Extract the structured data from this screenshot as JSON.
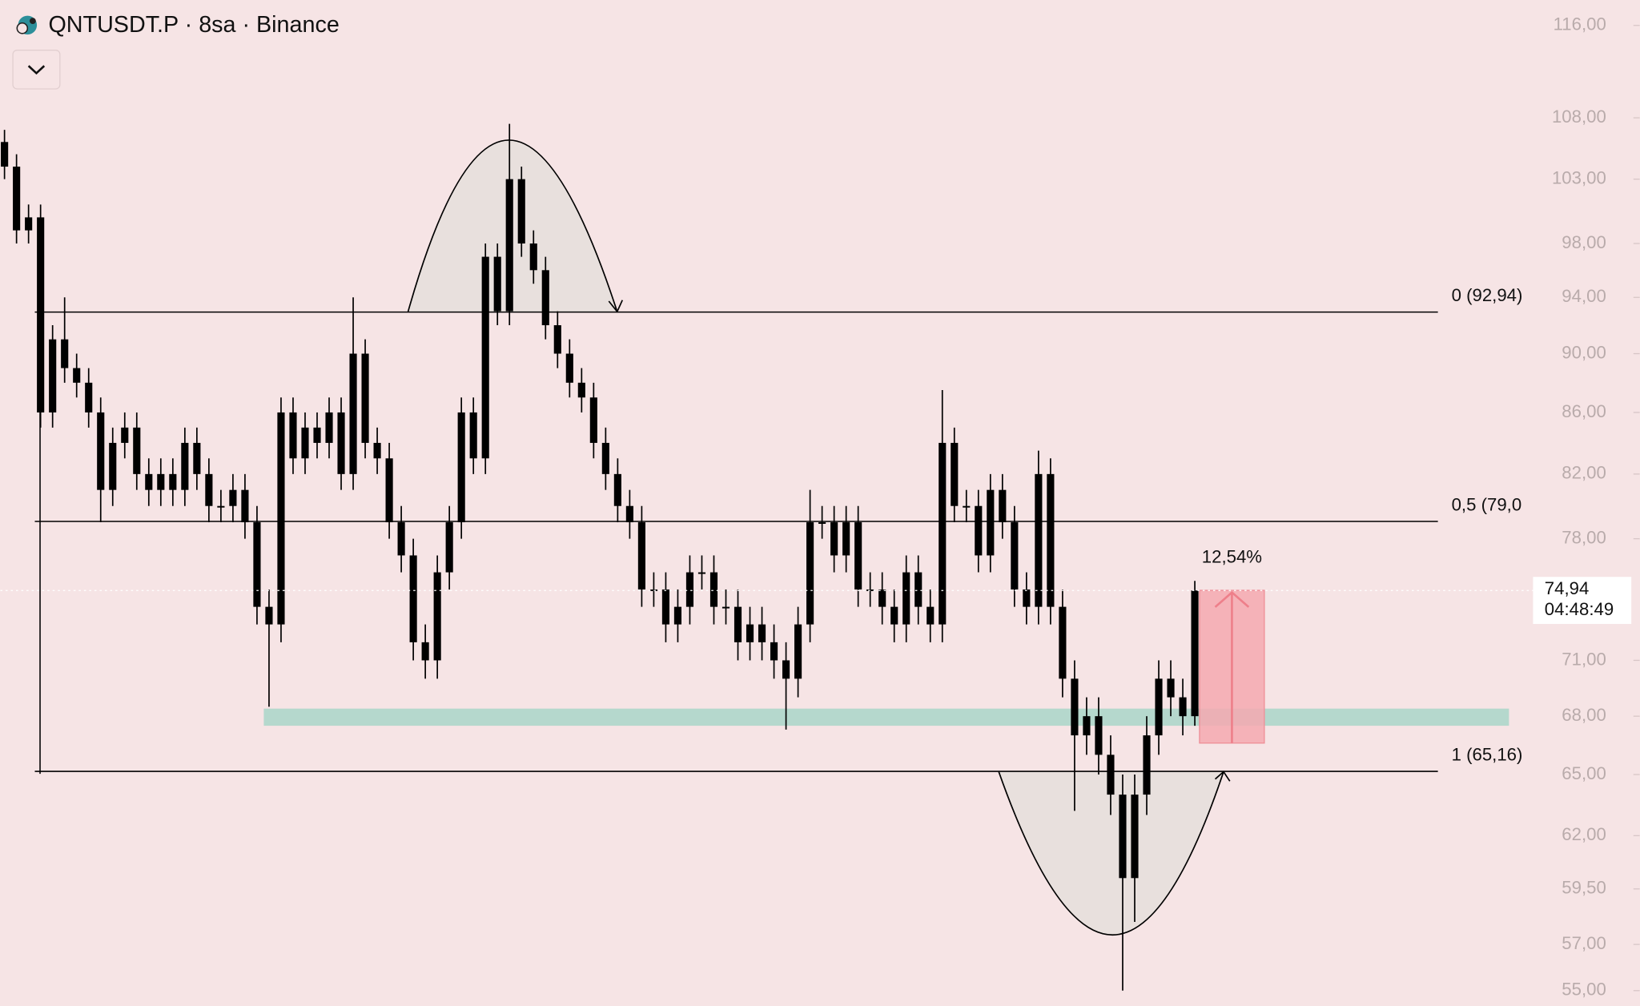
{
  "chart_data": {
    "type": "candlestick",
    "title": "QNTUSDT.P · 8sa · Binance",
    "color": "#000000",
    "log_scale": true,
    "ylim": [
      54.35,
      118.3
    ],
    "yticks": [
      {
        "value": 116,
        "label": "116,00"
      },
      {
        "value": 108,
        "label": "108,00"
      },
      {
        "value": 103,
        "label": "103,00"
      },
      {
        "value": 98,
        "label": "98,00"
      },
      {
        "value": 94,
        "label": "94,00"
      },
      {
        "value": 90,
        "label": "90,00"
      },
      {
        "value": 86,
        "label": "86,00"
      },
      {
        "value": 82,
        "label": "82,00"
      },
      {
        "value": 78,
        "label": "78,00"
      },
      {
        "value": 71,
        "label": "71,00"
      },
      {
        "value": 68,
        "label": "68,00"
      },
      {
        "value": 65,
        "label": "65,00"
      },
      {
        "value": 62,
        "label": "62,00"
      },
      {
        "value": 59.5,
        "label": "59,50"
      },
      {
        "value": 57,
        "label": "57,00"
      },
      {
        "value": 55,
        "label": "55,00"
      }
    ],
    "open": [
      106,
      104,
      99,
      100,
      86,
      91,
      89,
      88,
      86,
      81,
      84,
      85,
      82,
      81,
      82,
      81,
      84,
      82,
      80,
      80,
      81,
      79,
      74,
      73,
      86,
      83,
      85,
      84,
      86,
      82,
      90,
      84,
      83,
      79,
      77,
      72,
      71,
      76,
      79,
      86,
      83,
      97,
      93,
      103,
      98,
      96,
      92,
      90,
      88,
      87,
      84,
      82,
      80,
      79,
      75,
      75,
      73,
      74,
      76,
      76,
      74,
      74,
      72,
      73,
      72,
      71,
      70,
      73,
      79,
      79,
      77,
      79,
      75,
      75,
      74,
      73,
      76,
      74,
      73,
      84,
      80,
      80,
      77,
      81,
      79,
      75,
      74,
      82,
      74,
      70,
      67,
      68,
      66,
      64,
      60,
      64,
      67,
      70,
      69,
      68
    ],
    "high": [
      107,
      105,
      101,
      101,
      92,
      94,
      90,
      89,
      87,
      85,
      86,
      86,
      83,
      83,
      83,
      85,
      85,
      83,
      81,
      82,
      82,
      80,
      75,
      87,
      87,
      86,
      86,
      87,
      87,
      94,
      91,
      85,
      84,
      80,
      78,
      73,
      77,
      80,
      87,
      87,
      98,
      98,
      107.5,
      104,
      99,
      97,
      93,
      91,
      89,
      88,
      85,
      83,
      81,
      80,
      76,
      76,
      75,
      77,
      77,
      77,
      75,
      75,
      74,
      74,
      73,
      72,
      74,
      81,
      80,
      80,
      80,
      80,
      76,
      76,
      75,
      77,
      77,
      75,
      87.5,
      85,
      81,
      81,
      82,
      82,
      80,
      76,
      83.5,
      83,
      75,
      71,
      69,
      69,
      67,
      65,
      65,
      68,
      71,
      71,
      70,
      75.5
    ],
    "low": [
      103,
      98,
      98,
      85,
      85,
      88,
      87,
      85,
      79,
      80,
      83,
      81,
      80,
      80,
      80,
      80,
      81,
      79,
      79,
      79,
      78,
      73,
      68.5,
      72,
      82,
      82,
      83,
      83,
      81,
      81,
      83,
      82,
      78,
      76,
      71,
      70,
      70,
      75,
      78,
      82,
      82,
      92,
      92,
      97,
      95,
      91,
      89,
      87,
      86,
      83,
      81,
      79,
      78,
      74,
      74,
      72,
      72,
      73,
      75,
      73,
      73,
      71,
      71,
      71,
      70,
      67.3,
      69,
      72,
      78,
      76,
      76,
      74,
      74,
      73,
      72,
      72,
      73,
      72,
      72,
      79,
      79,
      76,
      76,
      78,
      74,
      73,
      73,
      73,
      69,
      63.2,
      66,
      65,
      63,
      55,
      58,
      63,
      66,
      68,
      67,
      67.5
    ],
    "close": [
      104,
      99,
      100,
      86,
      91,
      89,
      88,
      86,
      81,
      84,
      85,
      82,
      81,
      82,
      81,
      84,
      82,
      80,
      80,
      81,
      79,
      74,
      73,
      86,
      83,
      85,
      84,
      86,
      82,
      90,
      84,
      83,
      79,
      77,
      72,
      71,
      76,
      79,
      86,
      83,
      97,
      93,
      103,
      98,
      96,
      92,
      90,
      88,
      87,
      84,
      82,
      80,
      79,
      75,
      75,
      73,
      74,
      76,
      76,
      74,
      74,
      72,
      73,
      72,
      71,
      70,
      73,
      79,
      79,
      77,
      79,
      75,
      75,
      74,
      73,
      76,
      74,
      73,
      84,
      80,
      80,
      77,
      81,
      79,
      75,
      74,
      82,
      74,
      70,
      67,
      68,
      66,
      64,
      60,
      64,
      67,
      70,
      69,
      68,
      74.94
    ],
    "levels": [
      {
        "value": 92.94,
        "label": "0 (92,94)"
      },
      {
        "value": 79.05,
        "label": "0,5 (79,0"
      },
      {
        "value": 65.16,
        "label": "1 (65,16)"
      }
    ],
    "zones": [
      {
        "low": 67.5,
        "high": 68.4,
        "color": "#b5d8cd"
      },
      {
        "low": 66.6,
        "high": 74.95,
        "color": "#f5a9b0",
        "label": "12,54%"
      }
    ],
    "last_price": {
      "value": 74.94,
      "label": "74,94"
    },
    "countdown": "04:48:49"
  }
}
